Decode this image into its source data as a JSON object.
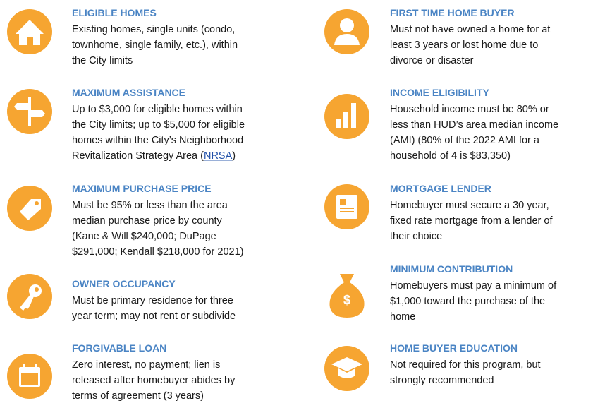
{
  "columns": [
    {
      "items": [
        {
          "title": "ELIGIBLE HOMES",
          "lines": [
            "Existing homes, single units (condo,",
            "townhome, single family, etc.), within",
            "the City limits"
          ]
        },
        {
          "title": "MAXIMUM ASSISTANCE",
          "lines": [
            "Up to $3,000 for eligible homes within",
            "the City limits; up to $5,000 for eligible",
            "homes within the City’s Neighborhood"
          ],
          "line_end": {
            "before": "Revitalization Strategy Area (",
            "link": "NRSA",
            "after": ")"
          }
        },
        {
          "title": "MAXIMUM PURCHASE PRICE",
          "lines": [
            "Must be 95% or less than the area",
            "median purchase price by county",
            "(Kane & Will $240,000; DuPage",
            "$291,000; Kendall $218,000 for 2021)"
          ]
        },
        {
          "title": "OWNER OCCUPANCY",
          "lines": [
            "Must be primary residence for three",
            "year term; may not rent or subdivide"
          ]
        },
        {
          "title": "FORGIVABLE LOAN",
          "lines": [
            "Zero interest, no payment; lien is",
            "released after homebuyer abides by",
            "terms of agreement (3 years)"
          ]
        }
      ]
    },
    {
      "items": [
        {
          "title": "FIRST TIME HOME BUYER",
          "lines": [
            "Must not have owned a home for at",
            "least 3 years or lost home due to",
            "divorce or disaster"
          ]
        },
        {
          "title": "INCOME ELIGIBILITY",
          "lines": [
            "Household income must be 80% or",
            "less than HUD’s area median income",
            "(AMI) (80% of the 2022 AMI for a",
            "household of 4 is $83,350)"
          ]
        },
        {
          "title": "MORTGAGE LENDER",
          "lines": [
            "Homebuyer must secure a 30 year,",
            "fixed rate mortgage from a lender of",
            "their choice"
          ]
        },
        {
          "title": "MINIMUM CONTRIBUTION",
          "lines": [
            "Homebuyers must pay a minimum of",
            "$1,000 toward the purchase of the",
            "home"
          ]
        },
        {
          "title": "HOME BUYER EDUCATION",
          "lines": [
            "Not required for this program, but",
            "strongly recommended"
          ]
        }
      ]
    }
  ]
}
